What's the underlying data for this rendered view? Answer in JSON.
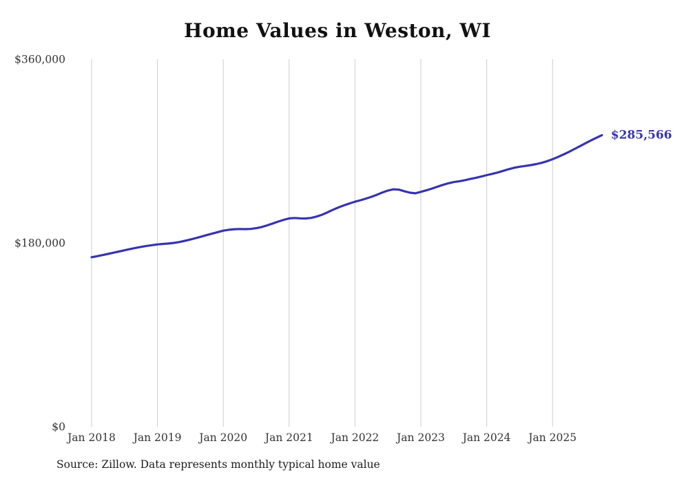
{
  "chart": {
    "title": "Home Values in Weston, WI",
    "source": "Source: Zillow. Data represents monthly typical home value",
    "end_label": "$285,566"
  },
  "colors": {
    "line": "#3733b0",
    "grid": "#cccccc",
    "axis_text": "#333333",
    "title_text": "#111111"
  },
  "chart_data": {
    "type": "line",
    "title": "Home Values in Weston, WI",
    "xlabel": "",
    "ylabel": "",
    "x_unit": "month",
    "x_start": "Jan 2018",
    "x_tick_labels": [
      "Jan 2018",
      "Jan 2019",
      "Jan 2020",
      "Jan 2021",
      "Jan 2022",
      "Jan 2023",
      "Jan 2024",
      "Jan 2025"
    ],
    "y_ticks": [
      {
        "value": 0,
        "label": "$0"
      },
      {
        "value": 180000,
        "label": "$180,000"
      },
      {
        "value": 360000,
        "label": "$360,000"
      }
    ],
    "ylim": [
      0,
      360000
    ],
    "grid": "vertical-only",
    "legend": "none",
    "end_value": 285566,
    "end_value_label": "$285,566",
    "series": [
      {
        "name": "Typical home value",
        "values": [
          166000,
          167000,
          168100,
          169200,
          170400,
          171600,
          172800,
          174000,
          175100,
          176100,
          177000,
          177800,
          178500,
          179000,
          179400,
          180000,
          180900,
          182000,
          183300,
          184700,
          186200,
          187700,
          189200,
          190600,
          192000,
          192900,
          193400,
          193600,
          193500,
          193700,
          194400,
          195600,
          197200,
          199000,
          200900,
          202600,
          204000,
          204400,
          204100,
          203900,
          204500,
          205800,
          207600,
          210000,
          212500,
          214800,
          216800,
          218600,
          220400,
          221800,
          223400,
          225200,
          227200,
          229400,
          231300,
          232500,
          232200,
          230600,
          229200,
          228600,
          230000,
          231500,
          233200,
          235000,
          236800,
          238400,
          239600,
          240400,
          241400,
          242600,
          243800,
          245000,
          246400,
          247600,
          249000,
          250600,
          252200,
          253600,
          254600,
          255400,
          256200,
          257200,
          258400,
          260000,
          262000,
          264200,
          266600,
          269200,
          272000,
          274800,
          277600,
          280400,
          283000,
          285566
        ]
      }
    ]
  }
}
